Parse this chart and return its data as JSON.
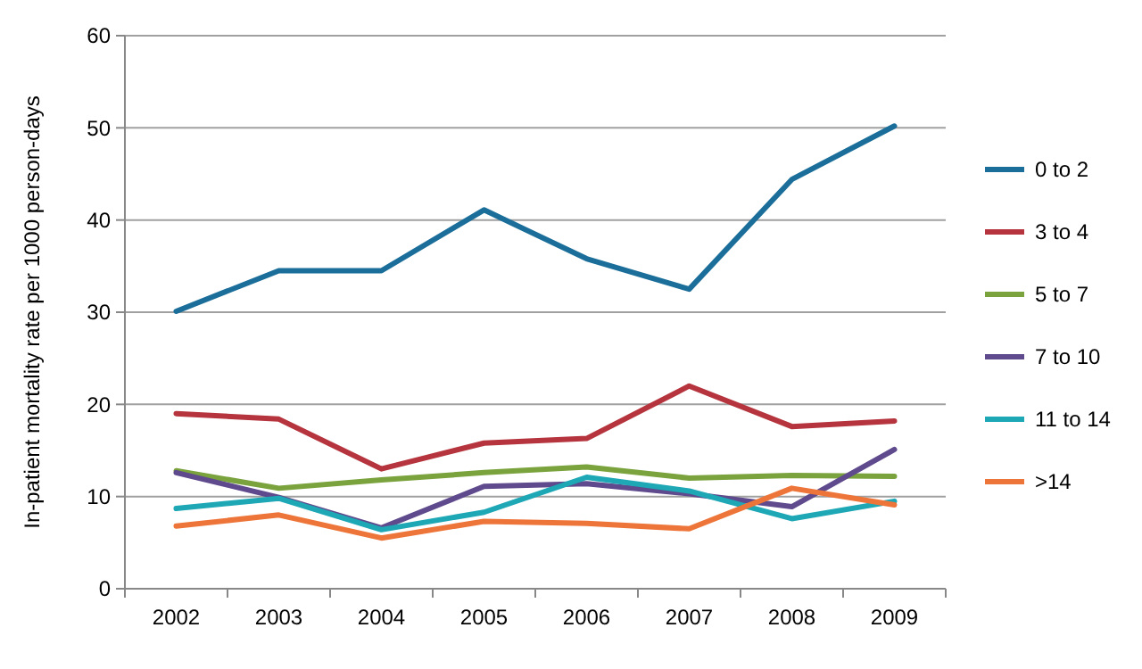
{
  "chart_data": {
    "type": "line",
    "ylabel": "In-patient mortality rate per 1000 person-days",
    "categories": [
      "2002",
      "2003",
      "2004",
      "2005",
      "2006",
      "2007",
      "2008",
      "2009"
    ],
    "ylim": [
      0,
      60
    ],
    "yticks": [
      0,
      10,
      20,
      30,
      40,
      50,
      60
    ],
    "grid": "y",
    "legend": "right",
    "marker": "none",
    "series": [
      {
        "name": "0 to 2",
        "color": "#1a6e99",
        "values": [
          30.1,
          34.5,
          34.5,
          41.1,
          35.8,
          32.5,
          44.4,
          50.2
        ]
      },
      {
        "name": "3 to 4",
        "color": "#b5343d",
        "values": [
          19,
          18.4,
          13,
          15.8,
          16.3,
          22,
          17.6,
          18.2
        ]
      },
      {
        "name": "5 to 7",
        "color": "#7aa33e",
        "values": [
          12.8,
          10.9,
          11.8,
          12.6,
          13.2,
          12,
          12.3,
          12.2
        ]
      },
      {
        "name": "7 to 10",
        "color": "#5e4a8c",
        "values": [
          12.6,
          9.9,
          6.6,
          11.1,
          11.4,
          10.3,
          8.9,
          15.1
        ]
      },
      {
        "name": "11 to 14",
        "color": "#1ea7b5",
        "values": [
          8.7,
          9.8,
          6.4,
          8.3,
          12.1,
          10.6,
          7.6,
          9.5
        ]
      },
      {
        "name": ">14",
        "color": "#ee7539",
        "values": [
          6.8,
          8,
          5.5,
          7.3,
          7.1,
          6.5,
          10.9,
          9.1
        ]
      }
    ]
  }
}
